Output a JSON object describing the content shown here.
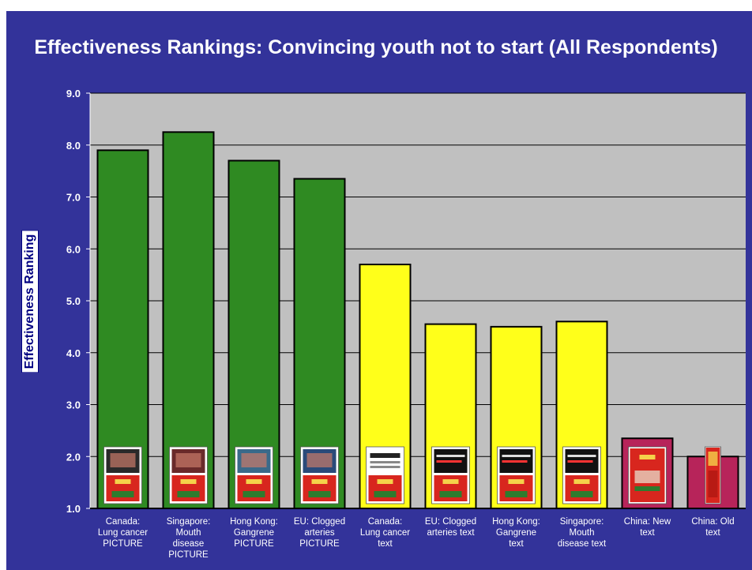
{
  "chart_data": {
    "type": "bar",
    "title": "Effectiveness Rankings: Convincing youth not to start  (All Respondents)",
    "xlabel": "",
    "ylabel": "Effectiveness Ranking",
    "ylim": [
      1.0,
      9.0
    ],
    "yticks": [
      "1.0",
      "2.0",
      "3.0",
      "4.0",
      "5.0",
      "6.0",
      "7.0",
      "8.0",
      "9.0"
    ],
    "grid": true,
    "categories": [
      "Canada:\nLung cancer\nPICTURE",
      "Singapore:\nMouth\ndisease\nPICTURE",
      "Hong Kong:\nGangrene\nPICTURE",
      "EU: Clogged\narteries\nPICTURE",
      "Canada:\nLung cancer\ntext",
      "EU: Clogged\narteries text",
      "Hong Kong:\nGangrene\ntext",
      "Singapore:\nMouth\ndisease text",
      "China: New\ntext",
      "China: Old\ntext"
    ],
    "values": [
      7.9,
      8.25,
      7.7,
      7.35,
      5.7,
      4.55,
      4.5,
      4.6,
      2.35,
      2.0
    ],
    "bar_colors": [
      "#2f8a22",
      "#2f8a22",
      "#2f8a22",
      "#2f8a22",
      "#ffff1a",
      "#ffff1a",
      "#ffff1a",
      "#ffff1a",
      "#b7245a",
      "#b7245a"
    ],
    "package_images": [
      "pack-canada-picture",
      "pack-singapore-picture",
      "pack-hongkong-picture",
      "pack-eu-picture",
      "pack-canada-text",
      "pack-eu-text",
      "pack-hongkong-text",
      "pack-singapore-text",
      "pack-china-new",
      "pack-china-old"
    ]
  },
  "colors": {
    "background": "#33339a",
    "plot_area": "#c0c0c0",
    "title_text": "#ffffff",
    "axis_text": "#ffffff",
    "picture_bars": "#2f8a22",
    "text_bars": "#ffff1a",
    "china_bars": "#b7245a"
  }
}
